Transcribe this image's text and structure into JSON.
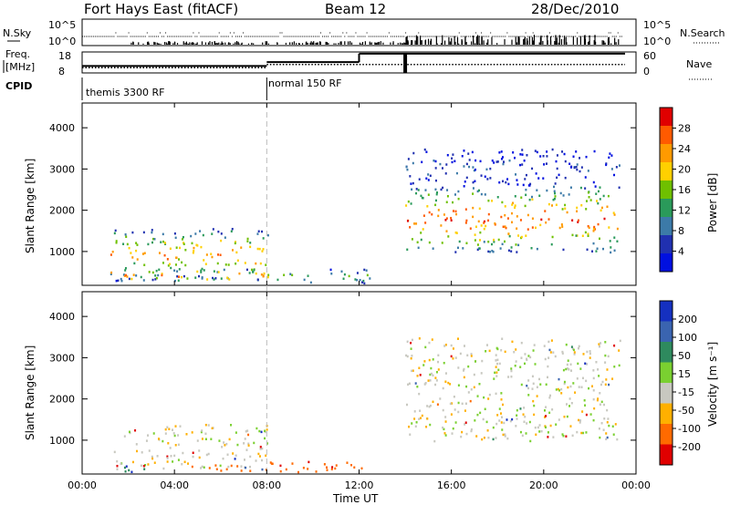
{
  "header": {
    "station": "Fort Hays East (fitACF)",
    "beam": "Beam 12",
    "date": "28/Dec/2010"
  },
  "summary_panels": {
    "nsky_label": "N.Sky",
    "nsky_ticks": [
      "10^5",
      "10^0"
    ],
    "nsearch_label": "N.Search",
    "nsearch_ticks": [
      "10^5",
      "10^0"
    ],
    "freq_label_line1": "Freq.",
    "freq_label_line2": "[MHz]",
    "freq_ticks": [
      "18",
      "8"
    ],
    "nave_label": "Nave",
    "nave_ticks": [
      "60",
      "0"
    ],
    "cpid_label": "CPID",
    "cpid_modes": [
      {
        "name": "themis 3300 RF",
        "start_hour": 0,
        "end_hour": 8
      },
      {
        "name": "normal 150 RF",
        "start_hour": 8,
        "end_hour": 24
      }
    ]
  },
  "axes": {
    "xlabel": "Time UT",
    "xticks": [
      "00:00",
      "04:00",
      "08:00",
      "12:00",
      "16:00",
      "20:00",
      "00:00"
    ],
    "ylabel_top": "Slant Range [km]",
    "ylabel_bottom": "Slant Range [km]",
    "yticks": [
      "1000",
      "2000",
      "3000",
      "4000"
    ]
  },
  "colorbars": {
    "power": {
      "label": "Power [dB]",
      "ticks": [
        "28",
        "24",
        "20",
        "16",
        "12",
        "8",
        "4"
      ],
      "colors": [
        "#e00000",
        "#ff5a00",
        "#ff9a00",
        "#ffd000",
        "#6fc000",
        "#2a9a5a",
        "#3c7aa8",
        "#2030b0",
        "#0010e0"
      ]
    },
    "velocity": {
      "label": "Velocity [m s⁻¹]",
      "ticks": [
        "200",
        "100",
        "50",
        "15",
        "-15",
        "-50",
        "-100",
        "-200"
      ],
      "colors": [
        "#1530c0",
        "#3a64b0",
        "#2e8a5e",
        "#7ad030",
        "#c8c8c0",
        "#ffb000",
        "#ff6a00",
        "#e00000"
      ]
    }
  },
  "chart_data": {
    "type": "heatmap",
    "x_unit": "hours UT",
    "xlim": [
      0,
      24
    ],
    "ylim": [
      180,
      4600
    ],
    "power_regions": [
      {
        "t0": 1.2,
        "t1": 8.1,
        "r0": 300,
        "r1": 1600,
        "peak_db": 24
      },
      {
        "t0": 1.2,
        "t1": 8.1,
        "r0": 300,
        "r1": 600,
        "peak_db": 28
      },
      {
        "t0": 8.0,
        "t1": 12.5,
        "r0": 250,
        "r1": 600,
        "peak_db": 16
      },
      {
        "t0": 14.0,
        "t1": 23.3,
        "r0": 1000,
        "r1": 2600,
        "peak_db": 28
      },
      {
        "t0": 14.0,
        "t1": 23.3,
        "r0": 2600,
        "r1": 3500,
        "peak_db": 8
      }
    ],
    "velocity_regions": [
      {
        "t0": 1.2,
        "t1": 8.1,
        "r0": 300,
        "r1": 1400,
        "vel": 0
      },
      {
        "t0": 1.2,
        "t1": 3.0,
        "r0": 250,
        "r1": 400,
        "vel": 40
      },
      {
        "t0": 4.0,
        "t1": 12.5,
        "r0": 250,
        "r1": 500,
        "vel": -60
      },
      {
        "t0": 14.0,
        "t1": 23.3,
        "r0": 1000,
        "r1": 2600,
        "vel": 0
      },
      {
        "t0": 14.0,
        "t1": 23.3,
        "r0": 2600,
        "r1": 3500,
        "vel": 0
      }
    ],
    "nave": [
      {
        "t0": 0,
        "t1": 8,
        "value": 20
      },
      {
        "t0": 8,
        "t1": 12,
        "value": 31
      },
      {
        "t0": 12,
        "t1": 24,
        "value": 55
      }
    ],
    "freq_mhz": [
      {
        "t0": 0,
        "t1": 8,
        "value": 10.5
      },
      {
        "t0": 8,
        "t1": 24,
        "value": 12
      }
    ],
    "mode_change_hour": 8.0
  }
}
